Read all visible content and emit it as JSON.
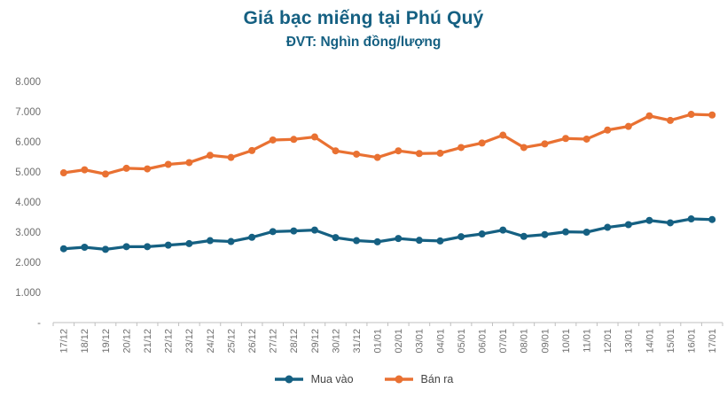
{
  "title": "Giá bạc miếng tại Phú Quý",
  "subtitle": "ĐVT: Nghìn đồng/lượng",
  "colors": {
    "title_text": "#156082",
    "buy_series": "#156082",
    "sell_series": "#E97132",
    "axis_text": "#6E6E6E",
    "axis_line": "#BFBFBF",
    "legend_text": "#444444"
  },
  "chart_data": {
    "type": "line",
    "title": "Giá bạc miếng tại Phú Quý",
    "subtitle": "ĐVT: Nghìn đồng/lượng",
    "xlabel": "",
    "ylabel": "",
    "ylim": [
      0,
      8000
    ],
    "ytick_step": 1000,
    "ytick_labels": [
      "-",
      "1.000",
      "2.000",
      "3.000",
      "4.000",
      "5.000",
      "6.000",
      "7.000",
      "8.000"
    ],
    "grid": false,
    "legend_position": "bottom",
    "marker": "circle",
    "categories": [
      "17/12",
      "18/12",
      "19/12",
      "20/12",
      "21/12",
      "22/12",
      "23/12",
      "24/12",
      "25/12",
      "26/12",
      "27/12",
      "28/12",
      "29/12",
      "30/12",
      "31/12",
      "01/01",
      "02/01",
      "03/01",
      "04/01",
      "05/01",
      "06/01",
      "07/01",
      "08/01",
      "09/01",
      "10/01",
      "11/01",
      "12/01",
      "13/01",
      "14/01",
      "15/01",
      "16/01",
      "17/01"
    ],
    "series": [
      {
        "name": "Mua vào",
        "color": "#156082",
        "values": [
          2450,
          2500,
          2430,
          2520,
          2520,
          2570,
          2620,
          2720,
          2690,
          2830,
          3020,
          3040,
          3070,
          2820,
          2720,
          2680,
          2790,
          2730,
          2710,
          2850,
          2940,
          3070,
          2860,
          2920,
          3010,
          3000,
          3160,
          3250,
          3390,
          3310,
          3440,
          3420
        ]
      },
      {
        "name": "Bán ra",
        "color": "#E97132",
        "values": [
          4970,
          5070,
          4930,
          5120,
          5100,
          5250,
          5310,
          5550,
          5480,
          5710,
          6060,
          6080,
          6160,
          5700,
          5590,
          5480,
          5700,
          5610,
          5620,
          5810,
          5960,
          6220,
          5810,
          5930,
          6110,
          6090,
          6390,
          6510,
          6860,
          6710,
          6910,
          6890
        ]
      }
    ]
  }
}
